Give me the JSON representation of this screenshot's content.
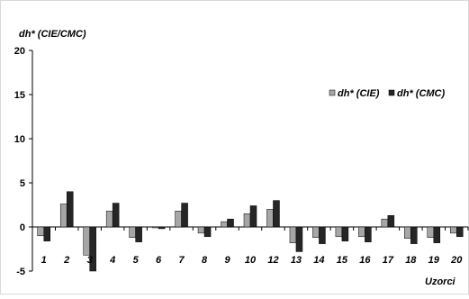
{
  "chart_data": {
    "type": "bar",
    "title": "",
    "ylabel": "dh* (CIE/CMC)",
    "xlabel": "Uzorci",
    "ylim": [
      -5,
      20
    ],
    "yticks": [
      "-5",
      "0",
      "5",
      "10",
      "15",
      "20"
    ],
    "categories": [
      "1",
      "2",
      "3",
      "4",
      "5",
      "6",
      "7",
      "8",
      "9",
      "10",
      "12",
      "13",
      "14",
      "15",
      "16",
      "17",
      "18",
      "19",
      "20"
    ],
    "series": [
      {
        "name": "dh* (CIE)",
        "color": "#a6a6a6",
        "values": [
          -1.0,
          2.6,
          -3.2,
          1.8,
          -1.2,
          -0.1,
          1.8,
          -0.7,
          0.6,
          1.5,
          2.0,
          -1.8,
          -1.2,
          -1.1,
          -1.1,
          0.9,
          -1.3,
          -1.2,
          -0.7
        ]
      },
      {
        "name": "dh* (CMC)",
        "color": "#262626",
        "values": [
          -1.6,
          4.0,
          -5.0,
          2.7,
          -1.7,
          -0.2,
          2.7,
          -1.1,
          0.9,
          2.4,
          3.0,
          -2.8,
          -1.9,
          -1.6,
          -1.7,
          1.3,
          -1.9,
          -1.8,
          -1.1
        ]
      }
    ],
    "legend_position": "top-right",
    "grid": false
  }
}
